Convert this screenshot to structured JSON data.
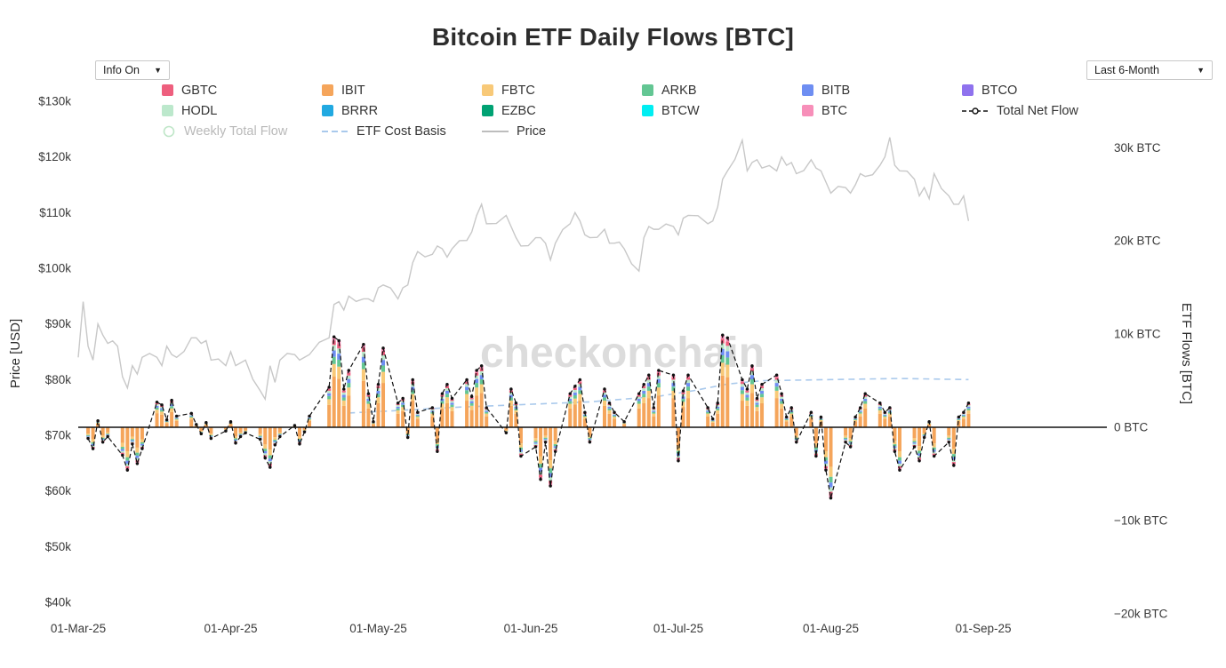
{
  "title": "Bitcoin ETF Daily Flows [BTC]",
  "controls": {
    "info_dropdown_label": "Info On",
    "range_dropdown_label": "Last 6-Month",
    "dropdown_arrow": "▼"
  },
  "watermark": "checkonchain",
  "axes": {
    "left_title": "Price [USD]",
    "right_title": "ETF Flows [BTC]",
    "left_ticks": [
      "$130k",
      "$120k",
      "$110k",
      "$100k",
      "$90k",
      "$80k",
      "$70k",
      "$60k",
      "$50k",
      "$40k"
    ],
    "left_tick_values": [
      130,
      120,
      110,
      100,
      90,
      80,
      70,
      60,
      50,
      40
    ],
    "right_ticks": [
      "30k BTC",
      "20k BTC",
      "10k BTC",
      "0 BTC",
      "−10k BTC",
      "−20k BTC"
    ],
    "right_tick_values": [
      30,
      20,
      10,
      0,
      -10,
      -20
    ],
    "x_ticks": [
      "01-Mar-25",
      "01-Apr-25",
      "01-May-25",
      "01-Jun-25",
      "01-Jul-25",
      "01-Aug-25",
      "01-Sep-25"
    ],
    "x_tick_days": [
      0,
      31,
      61,
      92,
      122,
      153,
      184
    ]
  },
  "legend": {
    "rows": [
      [
        {
          "label": "GBTC",
          "color": "#ee5f7e",
          "marker": "square"
        },
        {
          "label": "IBIT",
          "color": "#f5a55b",
          "marker": "square"
        },
        {
          "label": "FBTC",
          "color": "#f8c978",
          "marker": "square"
        },
        {
          "label": "ARKB",
          "color": "#63c693",
          "marker": "square"
        },
        {
          "label": "BITB",
          "color": "#6e8ef2",
          "marker": "square"
        },
        {
          "label": "BTCO",
          "color": "#8f72ee",
          "marker": "square"
        }
      ],
      [
        {
          "label": "HODL",
          "color": "#bce8cc",
          "marker": "square"
        },
        {
          "label": "BRRR",
          "color": "#21a9e1",
          "marker": "square"
        },
        {
          "label": "EZBC",
          "color": "#00a273",
          "marker": "square"
        },
        {
          "label": "BTCW",
          "color": "#00eef2",
          "marker": "square"
        },
        {
          "label": "BTC",
          "color": "#f78fb9",
          "marker": "square"
        },
        {
          "label": "Total Net Flow",
          "color": "#111111",
          "marker": "dash-dot-line"
        }
      ],
      [
        {
          "label": "Weekly Total Flow",
          "color": "#bfe6c8",
          "marker": "open-circle",
          "dimmed": true
        },
        {
          "label": "ETF Cost Basis",
          "color": "#a9c9ec",
          "marker": "dashed-line"
        },
        {
          "label": "Price",
          "color": "#bdbdbd",
          "marker": "line"
        }
      ]
    ]
  },
  "chart_data": {
    "type": "bar",
    "x_unit": "days since 01-Mar-25 (weekdays only have bars)",
    "flow_axis_label": "ETF Flows [BTC]",
    "flow_units": "thousand BTC",
    "price_axis_range_kusd": [
      40,
      130
    ],
    "flow_axis_range_kbtc": [
      -22.5,
      30
    ],
    "net_flow": {
      "name": "Total Net Flow",
      "color": "#111111",
      "days": [
        2,
        3,
        4,
        5,
        6,
        9,
        10,
        11,
        12,
        13,
        16,
        17,
        18,
        19,
        20,
        23,
        24,
        25,
        26,
        27,
        30,
        31,
        32,
        33,
        34,
        37,
        38,
        39,
        40,
        41,
        44,
        45,
        46,
        47,
        51,
        52,
        53,
        54,
        55,
        58,
        59,
        60,
        61,
        62,
        65,
        66,
        67,
        68,
        69,
        72,
        73,
        74,
        75,
        76,
        79,
        80,
        81,
        82,
        83,
        87,
        88,
        89,
        90,
        93,
        94,
        95,
        96,
        97,
        100,
        101,
        102,
        103,
        104,
        107,
        108,
        109,
        111,
        114,
        115,
        116,
        117,
        118,
        121,
        122,
        123,
        124,
        128,
        129,
        130,
        131,
        132,
        135,
        136,
        137,
        138,
        139,
        142,
        143,
        144,
        145,
        146,
        149,
        150,
        151,
        152,
        153,
        156,
        157,
        158,
        159,
        160,
        163,
        164,
        165,
        166,
        167,
        170,
        171,
        172,
        173,
        174,
        177,
        178,
        179,
        180,
        181
      ],
      "values_kbtc": [
        -1.2,
        -2.3,
        0.7,
        -1.6,
        -1.0,
        -3.0,
        -4.6,
        -1.8,
        -3.9,
        -2.3,
        2.7,
        2.4,
        0.8,
        2.9,
        1.2,
        1.5,
        0.3,
        -0.7,
        0.5,
        -1.2,
        -0.4,
        0.6,
        -1.7,
        -1.0,
        -0.6,
        -1.3,
        -3.3,
        -4.3,
        -1.9,
        -1.0,
        0.2,
        -1.8,
        -0.5,
        1.2,
        4.3,
        9.7,
        9.3,
        4.1,
        6.1,
        8.9,
        3.6,
        0.6,
        4.6,
        8.5,
        2.6,
        3.1,
        -1.1,
        5.1,
        1.6,
        2.1,
        -2.6,
        3.6,
        4.6,
        3.1,
        5.1,
        3.3,
        6.1,
        6.6,
        2.1,
        -0.6,
        4.1,
        2.6,
        -3.1,
        -2.1,
        -5.6,
        -1.6,
        -6.3,
        -2.6,
        3.6,
        4.4,
        5.1,
        1.6,
        -1.6,
        4.1,
        2.6,
        1.6,
        0.6,
        3.6,
        4.6,
        5.6,
        2.1,
        6.1,
        5.6,
        -3.6,
        3.9,
        5.6,
        2.1,
        0.9,
        2.6,
        9.9,
        9.6,
        5.1,
        4.1,
        6.6,
        3.1,
        4.6,
        5.6,
        3.6,
        1.1,
        2.1,
        -1.6,
        1.6,
        -3.1,
        1.1,
        -4.6,
        -7.6,
        -1.6,
        -2.1,
        1.1,
        2.1,
        3.6,
        2.6,
        1.6,
        2.1,
        -2.6,
        -4.6,
        -2.1,
        -3.6,
        -1.1,
        0.6,
        -3.1,
        -1.6,
        -4.1,
        1.1,
        1.6,
        2.6
      ]
    },
    "flow_composition": [
      {
        "name": "IBIT",
        "color": "#f5a55b",
        "weight": 0.56
      },
      {
        "name": "FBTC",
        "color": "#f8c978",
        "weight": 0.14
      },
      {
        "name": "ARKB",
        "color": "#63c693",
        "weight": 0.08
      },
      {
        "name": "BITB",
        "color": "#6e8ef2",
        "weight": 0.07
      },
      {
        "name": "HODL",
        "color": "#bce8cc",
        "weight": 0.06
      },
      {
        "name": "GBTC",
        "color": "#ee5f7e",
        "weight": 0.05
      },
      {
        "name": "BTC",
        "color": "#f78fb9",
        "weight": 0.04
      }
    ],
    "price_line": {
      "name": "Price",
      "color": "#c8c8c8",
      "points_day_kusd": [
        [
          0,
          84
        ],
        [
          1,
          94
        ],
        [
          2,
          86
        ],
        [
          3,
          83.5
        ],
        [
          4,
          90
        ],
        [
          5,
          88
        ],
        [
          6,
          86.5
        ],
        [
          8,
          86
        ],
        [
          9,
          80.5
        ],
        [
          10,
          78.5
        ],
        [
          11,
          82.5
        ],
        [
          12,
          81
        ],
        [
          13,
          84
        ],
        [
          16,
          84
        ],
        [
          17,
          82.5
        ],
        [
          18,
          86
        ],
        [
          19,
          84.5
        ],
        [
          20,
          84
        ],
        [
          23,
          87.5
        ],
        [
          24,
          87.5
        ],
        [
          25,
          86.5
        ],
        [
          26,
          87
        ],
        [
          27,
          83.5
        ],
        [
          30,
          82.5
        ],
        [
          31,
          85
        ],
        [
          32,
          82.5
        ],
        [
          33,
          83
        ],
        [
          34,
          83.5
        ],
        [
          37,
          78
        ],
        [
          38,
          76.5
        ],
        [
          39,
          82.5
        ],
        [
          40,
          79.5
        ],
        [
          41,
          83.5
        ],
        [
          44,
          84.5
        ],
        [
          45,
          83.5
        ],
        [
          46,
          84
        ],
        [
          47,
          84.5
        ],
        [
          51,
          87.5
        ],
        [
          52,
          93.5
        ],
        [
          53,
          94
        ],
        [
          54,
          92.5
        ],
        [
          55,
          95
        ],
        [
          58,
          94.5
        ],
        [
          59,
          94.5
        ],
        [
          60,
          94
        ],
        [
          61,
          96.5
        ],
        [
          62,
          97
        ],
        [
          65,
          94.5
        ],
        [
          66,
          96.5
        ],
        [
          67,
          97
        ],
        [
          68,
          101
        ],
        [
          69,
          103
        ],
        [
          72,
          102.5
        ],
        [
          73,
          104
        ],
        [
          74,
          103.5
        ],
        [
          75,
          102
        ],
        [
          76,
          103.5
        ],
        [
          79,
          105
        ],
        [
          80,
          106.5
        ],
        [
          81,
          109.5
        ],
        [
          82,
          111.5
        ],
        [
          83,
          108
        ],
        [
          87,
          109.5
        ],
        [
          88,
          107.5
        ],
        [
          89,
          105.5
        ],
        [
          90,
          104
        ],
        [
          93,
          105.5
        ],
        [
          94,
          105.5
        ],
        [
          95,
          104.5
        ],
        [
          96,
          101.5
        ],
        [
          97,
          104.5
        ],
        [
          100,
          108
        ],
        [
          101,
          110
        ],
        [
          102,
          108.5
        ],
        [
          103,
          106
        ],
        [
          104,
          105.5
        ],
        [
          107,
          107
        ],
        [
          108,
          104.5
        ],
        [
          109,
          104.5
        ],
        [
          111,
          103.5
        ],
        [
          114,
          99.5
        ],
        [
          115,
          105.5
        ],
        [
          116,
          107.5
        ],
        [
          117,
          107
        ],
        [
          118,
          107
        ],
        [
          121,
          107.5
        ],
        [
          122,
          106
        ],
        [
          123,
          109
        ],
        [
          124,
          109.5
        ],
        [
          128,
          108
        ],
        [
          129,
          108.5
        ],
        [
          130,
          111
        ],
        [
          131,
          116
        ],
        [
          132,
          117.5
        ],
        [
          135,
          123
        ],
        [
          136,
          117.5
        ],
        [
          137,
          119
        ],
        [
          138,
          119.5
        ],
        [
          139,
          118
        ],
        [
          142,
          117.5
        ],
        [
          143,
          120
        ],
        [
          144,
          118.5
        ],
        [
          145,
          119
        ],
        [
          146,
          117
        ],
        [
          149,
          119.5
        ],
        [
          150,
          118
        ],
        [
          151,
          117.5
        ],
        [
          152,
          115.5
        ],
        [
          153,
          113.5
        ],
        [
          156,
          114.5
        ],
        [
          157,
          113.5
        ],
        [
          158,
          115
        ],
        [
          159,
          117
        ],
        [
          160,
          116.5
        ],
        [
          163,
          118.5
        ],
        [
          164,
          120
        ],
        [
          165,
          123.5
        ],
        [
          166,
          118.5
        ],
        [
          167,
          117.5
        ],
        [
          170,
          116
        ],
        [
          171,
          113
        ],
        [
          172,
          114.5
        ],
        [
          173,
          112.5
        ],
        [
          174,
          117
        ],
        [
          177,
          113
        ],
        [
          178,
          111.5
        ],
        [
          179,
          111.5
        ],
        [
          180,
          113
        ],
        [
          181,
          108.5
        ]
      ]
    },
    "cost_basis_line": {
      "name": "ETF Cost Basis",
      "color": "#a9c9ec",
      "points_day_kusd": [
        [
          55,
          74
        ],
        [
          62,
          74.3
        ],
        [
          76,
          75
        ],
        [
          90,
          75.5
        ],
        [
          104,
          76
        ],
        [
          118,
          77
        ],
        [
          125,
          78
        ],
        [
          132,
          79.2
        ],
        [
          139,
          79.8
        ],
        [
          153,
          80
        ],
        [
          167,
          80.2
        ],
        [
          181,
          80
        ]
      ]
    }
  }
}
